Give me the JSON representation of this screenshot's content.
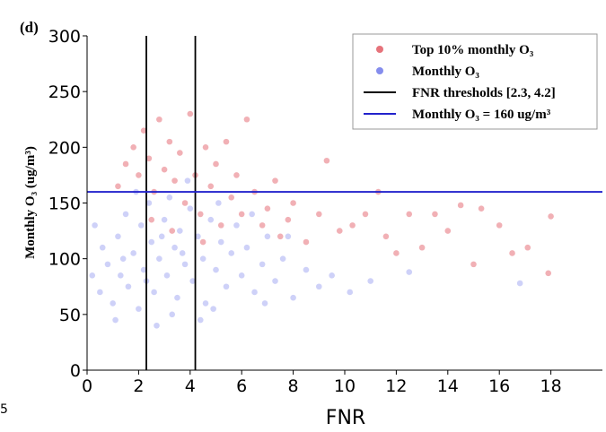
{
  "chart_data": {
    "type": "scatter",
    "panel_label": "(d)",
    "edge_fragment": "5",
    "x_label": "FNR",
    "y_label": "Monthly O₃ (ug/m³)",
    "xlim": [
      0,
      20
    ],
    "ylim": [
      0,
      300
    ],
    "xticks": [
      0,
      2,
      4,
      6,
      8,
      10,
      12,
      14,
      16,
      18
    ],
    "yticks": [
      0,
      50,
      100,
      150,
      200,
      250,
      300
    ],
    "legend": "upper right",
    "series": [
      {
        "name": "Top 10% monthly O₃",
        "color": "#e0505a",
        "x": [
          1.2,
          1.5,
          1.8,
          2.0,
          2.2,
          2.4,
          2.6,
          2.8,
          3.0,
          3.2,
          3.4,
          3.6,
          3.8,
          4.0,
          4.2,
          4.4,
          4.6,
          4.8,
          5.0,
          5.2,
          5.4,
          5.6,
          5.8,
          6.0,
          6.2,
          6.5,
          6.8,
          7.0,
          7.3,
          7.5,
          7.8,
          8.0,
          8.5,
          9.0,
          9.3,
          9.8,
          10.3,
          10.8,
          11.3,
          11.6,
          12.0,
          12.5,
          13.0,
          13.5,
          14.0,
          14.5,
          15.0,
          15.3,
          16.0,
          17.1,
          17.9,
          18.0,
          16.5,
          3.3,
          4.5,
          2.5
        ],
        "values": [
          165,
          185,
          200,
          175,
          215,
          190,
          160,
          225,
          180,
          205,
          170,
          195,
          150,
          230,
          175,
          140,
          200,
          165,
          185,
          130,
          205,
          155,
          175,
          140,
          225,
          160,
          130,
          145,
          170,
          120,
          135,
          150,
          115,
          140,
          188,
          125,
          130,
          140,
          160,
          120,
          105,
          140,
          110,
          140,
          125,
          148,
          95,
          145,
          130,
          110,
          87,
          138,
          105,
          125,
          115,
          135
        ]
      },
      {
        "name": "Monthly O₃",
        "color": "#6670e8",
        "x": [
          0.5,
          0.8,
          1.0,
          1.2,
          1.3,
          1.5,
          1.6,
          1.8,
          2.0,
          2.1,
          2.2,
          2.4,
          2.5,
          2.6,
          2.8,
          3.0,
          3.1,
          3.2,
          3.4,
          3.5,
          3.6,
          3.8,
          4.0,
          4.1,
          4.3,
          4.5,
          4.6,
          4.8,
          5.0,
          5.2,
          5.4,
          5.6,
          5.8,
          6.0,
          6.2,
          6.5,
          6.8,
          7.0,
          7.3,
          7.6,
          8.0,
          8.5,
          9.0,
          9.5,
          10.2,
          11.0,
          0.3,
          0.6,
          1.1,
          1.9,
          2.7,
          3.3,
          3.9,
          4.4,
          5.1,
          6.4,
          7.8,
          2.3,
          1.4,
          3.7,
          16.8,
          12.5,
          0.2,
          2.9,
          4.9,
          6.9
        ],
        "values": [
          70,
          95,
          60,
          120,
          85,
          140,
          75,
          105,
          55,
          130,
          90,
          150,
          115,
          70,
          100,
          135,
          85,
          155,
          110,
          65,
          125,
          95,
          145,
          80,
          120,
          100,
          60,
          135,
          90,
          115,
          75,
          105,
          130,
          85,
          110,
          70,
          95,
          120,
          80,
          100,
          65,
          90,
          75,
          85,
          70,
          80,
          130,
          110,
          45,
          160,
          40,
          50,
          170,
          45,
          150,
          140,
          120,
          80,
          100,
          105,
          78,
          88,
          85,
          120,
          55,
          60
        ]
      }
    ],
    "vlines": {
      "name": "FNR thresholds [2.3, 4.2]",
      "color": "#000000",
      "values": [
        2.3,
        4.2
      ]
    },
    "hline": {
      "name": "Monthly O₃ = 160 ug/m³",
      "color": "#2222cc",
      "value": 160
    }
  }
}
